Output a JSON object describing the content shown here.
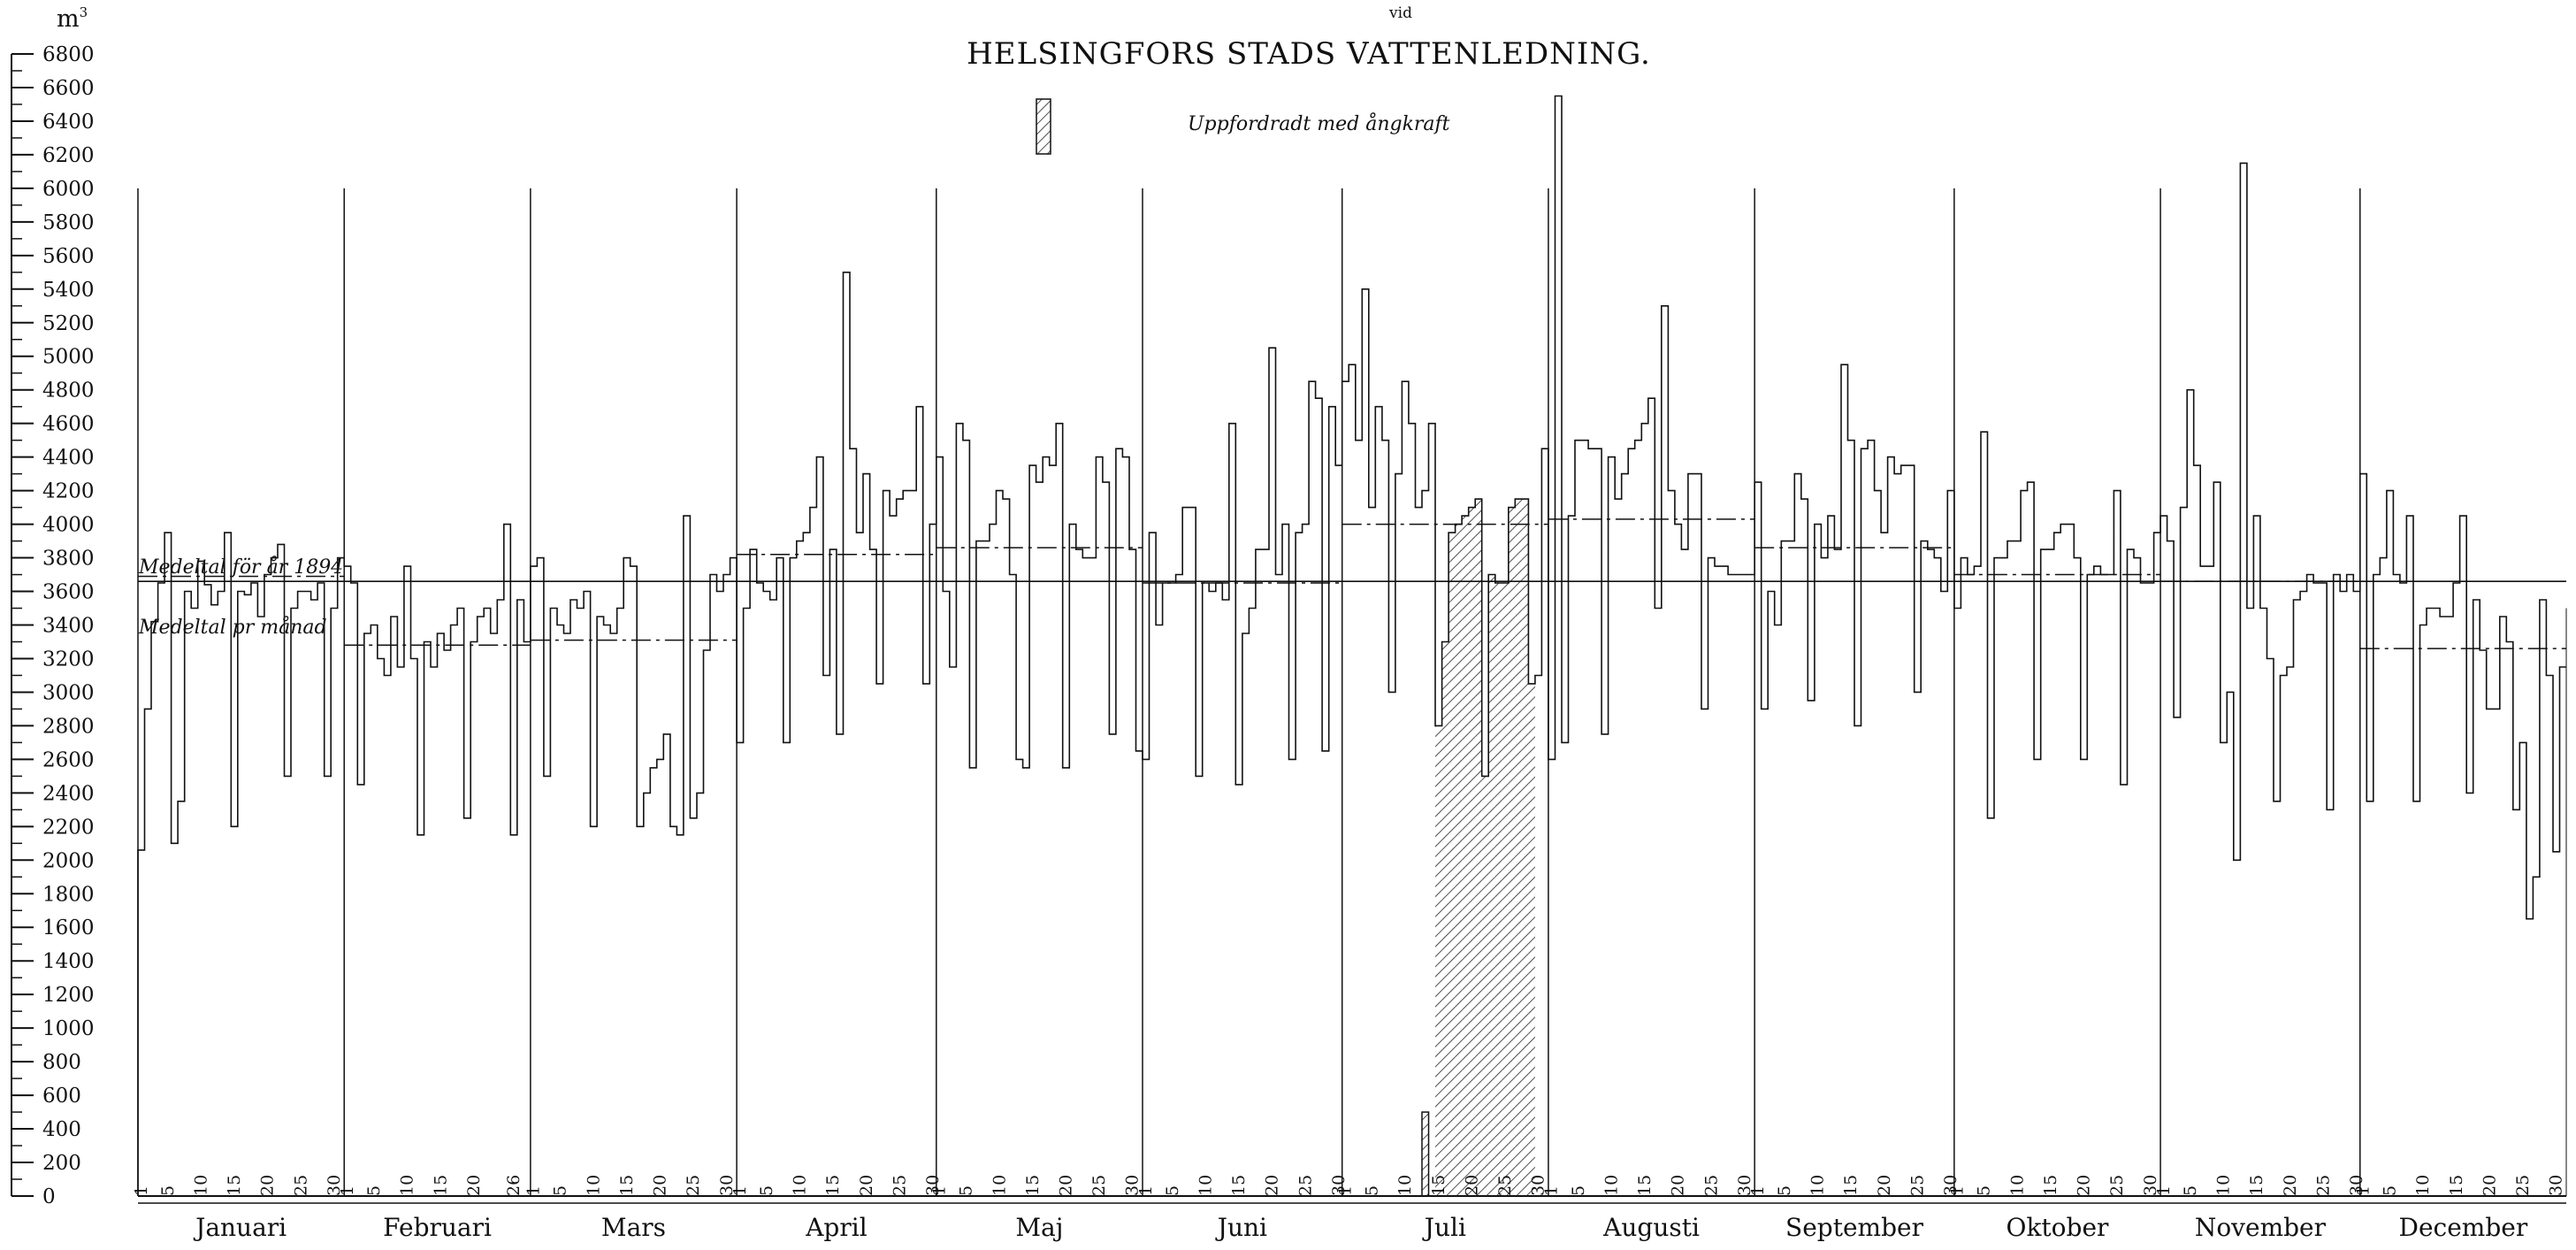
{
  "chart_data": {
    "type": "line",
    "title": "HELSINGFORS STADS VATTENLEDNING.",
    "supertitle": "vid",
    "unit_label": "m",
    "unit_superscript": "3",
    "ylim": [
      0,
      6800
    ],
    "yticks": [
      0,
      200,
      400,
      600,
      800,
      1000,
      1200,
      1400,
      1600,
      1800,
      2000,
      2200,
      2400,
      2600,
      2800,
      3000,
      3200,
      3400,
      3600,
      3800,
      4000,
      4200,
      4400,
      4600,
      4800,
      5000,
      5200,
      5400,
      5600,
      5800,
      6000,
      6200,
      6400,
      6600,
      6800
    ],
    "legend": [
      {
        "label": "Uppfordradt med ångkraft",
        "style": "hatched"
      }
    ],
    "reference_lines": [
      {
        "label": "Medeltal för år 1894",
        "value": 3660,
        "style": "solid"
      }
    ],
    "monthly_mean_label": "Medeltal pr månad",
    "months": [
      {
        "name": "Januari",
        "days": 31,
        "day_labels": [
          "1",
          "5",
          "10",
          "15",
          "20",
          "25",
          "30"
        ],
        "mean": 3690,
        "values": [
          2060,
          2900,
          3420,
          3650,
          3950,
          2100,
          2350,
          3600,
          3500,
          3780,
          3640,
          3520,
          3600,
          3950,
          2200,
          3600,
          3580,
          3650,
          3450,
          3700,
          3800,
          3880,
          2500,
          3500,
          3600,
          3600,
          3550,
          3650,
          2500,
          3500,
          3800
        ]
      },
      {
        "name": "Februari",
        "days": 28,
        "day_labels": [
          "1",
          "5",
          "10",
          "15",
          "20",
          "26"
        ],
        "mean": 3280,
        "values": [
          3750,
          3650,
          2450,
          3350,
          3400,
          3200,
          3100,
          3450,
          3150,
          3750,
          3200,
          2150,
          3300,
          3150,
          3350,
          3250,
          3400,
          3500,
          2250,
          3300,
          3450,
          3500,
          3350,
          3550,
          4000,
          2150,
          3550,
          3300
        ]
      },
      {
        "name": "Mars",
        "days": 31,
        "day_labels": [
          "1",
          "5",
          "10",
          "15",
          "20",
          "25",
          "30"
        ],
        "mean": 3310,
        "values": [
          3750,
          3800,
          2500,
          3500,
          3400,
          3350,
          3550,
          3500,
          3600,
          2200,
          3450,
          3400,
          3350,
          3500,
          3800,
          3750,
          2200,
          2400,
          2550,
          2600,
          2750,
          2200,
          2150,
          4050,
          2250,
          2400,
          3250,
          3700,
          3600,
          3700,
          3800
        ]
      },
      {
        "name": "April",
        "days": 30,
        "day_labels": [
          "1",
          "5",
          "10",
          "15",
          "20",
          "25",
          "30"
        ],
        "mean": 3820,
        "values": [
          2700,
          3500,
          3850,
          3650,
          3600,
          3550,
          3800,
          2700,
          3800,
          3900,
          3950,
          4100,
          4400,
          3100,
          3850,
          2750,
          5500,
          4450,
          3950,
          4300,
          3850,
          3050,
          4200,
          4050,
          4150,
          4200,
          4200,
          4700,
          3050,
          4000
        ]
      },
      {
        "name": "Maj",
        "days": 31,
        "day_labels": [
          "1",
          "5",
          "10",
          "15",
          "20",
          "25",
          "30"
        ],
        "mean": 3860,
        "values": [
          4400,
          3600,
          3150,
          4600,
          4500,
          2550,
          3900,
          3900,
          4000,
          4200,
          4150,
          3700,
          2600,
          2550,
          4350,
          4250,
          4400,
          4350,
          4600,
          2550,
          4000,
          3850,
          3800,
          3800,
          4400,
          4250,
          2750,
          4450,
          4400,
          3850,
          2650
        ]
      },
      {
        "name": "Juni",
        "days": 30,
        "day_labels": [
          "1",
          "5",
          "10",
          "15",
          "20",
          "25",
          "30"
        ],
        "mean": 3650,
        "values": [
          2600,
          3950,
          3400,
          3650,
          3650,
          3700,
          4100,
          4100,
          2500,
          3650,
          3600,
          3650,
          3550,
          4600,
          2450,
          3350,
          3500,
          3850,
          3850,
          5050,
          3700,
          4000,
          2600,
          3950,
          4000,
          4850,
          4750,
          2650,
          4700,
          4350
        ]
      },
      {
        "name": "Juli",
        "days": 31,
        "day_labels": [
          "1",
          "5",
          "10",
          "15",
          "20",
          "25",
          "30"
        ],
        "mean": 4000,
        "values": [
          4850,
          4950,
          4500,
          5400,
          4100,
          4700,
          4500,
          3000,
          4300,
          4850,
          4600,
          4100,
          4200,
          4600,
          2800,
          3300,
          3950,
          4000,
          4050,
          4100,
          4150,
          2500,
          3700,
          3650,
          3650,
          4100,
          4150,
          4150,
          3050,
          3100,
          4450
        ],
        "hatched_days": [
          15,
          16,
          17,
          18,
          19,
          20,
          21,
          22,
          23,
          24,
          25,
          26,
          27,
          28,
          29
        ],
        "hatched_small_day": 13,
        "hatched_small_value": 500
      },
      {
        "name": "Augusti",
        "days": 31,
        "day_labels": [
          "1",
          "5",
          "10",
          "15",
          "20",
          "25",
          "30"
        ],
        "mean": 4030,
        "values": [
          2600,
          6550,
          2700,
          4050,
          4500,
          4500,
          4450,
          4450,
          2750,
          4400,
          4150,
          4300,
          4450,
          4500,
          4600,
          4750,
          3500,
          5300,
          4200,
          4000,
          3850,
          4300,
          4300,
          2900,
          3800,
          3750,
          3750,
          3700,
          3700,
          3700,
          3700
        ]
      },
      {
        "name": "September",
        "days": 30,
        "day_labels": [
          "1",
          "5",
          "10",
          "15",
          "20",
          "25",
          "30"
        ],
        "mean": 3860,
        "values": [
          4250,
          2900,
          3600,
          3400,
          3900,
          3900,
          4300,
          4150,
          2950,
          4000,
          3800,
          4050,
          3850,
          4950,
          4500,
          2800,
          4450,
          4500,
          4200,
          3950,
          4400,
          4300,
          4350,
          4350,
          3000,
          3900,
          3850,
          3800,
          3600,
          4200
        ]
      },
      {
        "name": "Oktober",
        "days": 31,
        "day_labels": [
          "1",
          "5",
          "10",
          "15",
          "20",
          "25",
          "30"
        ],
        "mean": 3700,
        "values": [
          3500,
          3800,
          3700,
          3750,
          4550,
          2250,
          3800,
          3800,
          3900,
          3900,
          4200,
          4250,
          2600,
          3850,
          3850,
          3950,
          4000,
          4000,
          3800,
          2600,
          3700,
          3750,
          3700,
          3700,
          4200,
          2450,
          3850,
          3800,
          3650,
          3650,
          3950
        ]
      },
      {
        "name": "November",
        "days": 30,
        "day_labels": [
          "1",
          "5",
          "10",
          "15",
          "20",
          "25",
          "30"
        ],
        "mean": 3660,
        "values": [
          4050,
          3900,
          2850,
          4100,
          4800,
          4350,
          3750,
          3750,
          4250,
          2700,
          3000,
          2000,
          6150,
          3500,
          4050,
          3500,
          3200,
          2350,
          3100,
          3150,
          3550,
          3600,
          3700,
          3650,
          3650,
          2300,
          3700,
          3600,
          3700,
          3600
        ]
      },
      {
        "name": "December",
        "days": 31,
        "day_labels": [
          "1",
          "5",
          "10",
          "15",
          "20",
          "25",
          "30"
        ],
        "mean": 3260,
        "values": [
          4300,
          2350,
          3700,
          3800,
          4200,
          3700,
          3650,
          4050,
          2350,
          3400,
          3500,
          3500,
          3450,
          3450,
          3650,
          4050,
          2400,
          3550,
          3250,
          2900,
          2900,
          3450,
          3300,
          2300,
          2700,
          1650,
          1900,
          3550,
          3100,
          2050,
          3150
        ]
      }
    ]
  }
}
